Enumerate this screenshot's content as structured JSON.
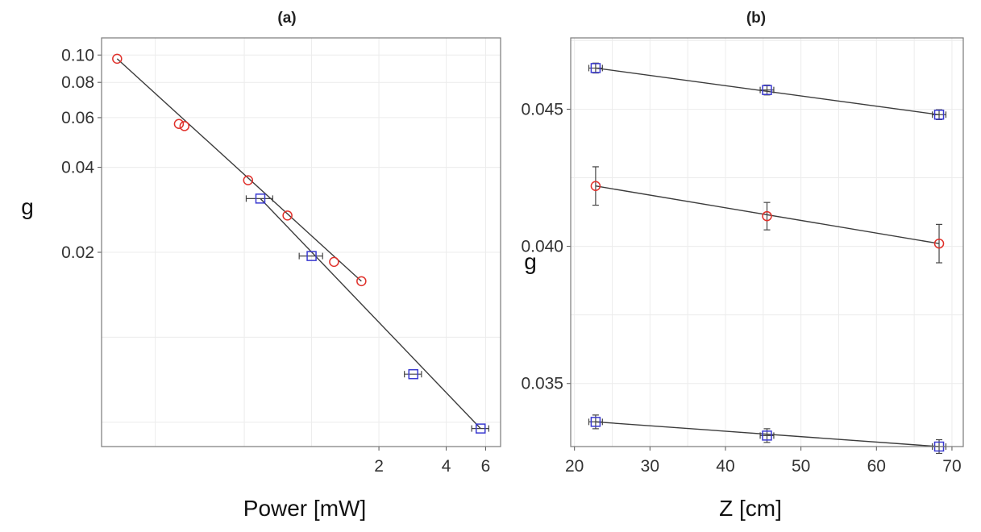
{
  "chart_data": [
    {
      "type": "scatter",
      "panel_label": "(a)",
      "xlabel": "Power [mW]",
      "ylabel": "g",
      "x_scale": "log",
      "y_scale": "log",
      "xlim": [
        0.115,
        7.0
      ],
      "ylim": [
        0.0041,
        0.115
      ],
      "x_ticks": [
        {
          "value": 2,
          "label": "2"
        },
        {
          "value": 4,
          "label": "4"
        },
        {
          "value": 6,
          "label": "6"
        }
      ],
      "y_ticks": [
        {
          "value": 0.02,
          "label": "0.02"
        },
        {
          "value": 0.04,
          "label": "0.04"
        },
        {
          "value": 0.06,
          "label": "0.06"
        },
        {
          "value": 0.08,
          "label": "0.08"
        },
        {
          "value": 0.1,
          "label": "0.10"
        }
      ],
      "grid": true,
      "series": [
        {
          "marker": "circle",
          "color": "#e0302a",
          "points": [
            {
              "x": 0.135,
              "y": 0.097
            },
            {
              "x": 0.255,
              "y": 0.057
            },
            {
              "x": 0.27,
              "y": 0.056
            },
            {
              "x": 0.52,
              "y": 0.036
            },
            {
              "x": 0.78,
              "y": 0.027
            },
            {
              "x": 1.26,
              "y": 0.0185
            },
            {
              "x": 1.67,
              "y": 0.0158
            }
          ]
        },
        {
          "marker": "square",
          "color": "#3a3ad0",
          "points": [
            {
              "x": 0.59,
              "y": 0.031,
              "xerr": 0.08
            },
            {
              "x": 1.0,
              "y": 0.0194,
              "xerr": 0.12
            },
            {
              "x": 2.85,
              "y": 0.0074,
              "xerr": 0.25
            },
            {
              "x": 5.7,
              "y": 0.00475,
              "xerr": 0.5
            }
          ]
        }
      ],
      "fit_lines": [
        {
          "x": [
            0.135,
            1.67
          ],
          "y": [
            0.097,
            0.0158
          ]
        },
        {
          "x": [
            0.59,
            5.7
          ],
          "y": [
            0.031,
            0.00475
          ]
        }
      ]
    },
    {
      "type": "scatter",
      "panel_label": "(b)",
      "xlabel": "Z [cm]",
      "ylabel": "g",
      "xlim": [
        19.5,
        71.5
      ],
      "ylim": [
        0.0327,
        0.0476
      ],
      "x_ticks": [
        {
          "value": 20,
          "label": "20"
        },
        {
          "value": 30,
          "label": "30"
        },
        {
          "value": 40,
          "label": "40"
        },
        {
          "value": 50,
          "label": "50"
        },
        {
          "value": 60,
          "label": "60"
        },
        {
          "value": 70,
          "label": "70"
        }
      ],
      "y_ticks": [
        {
          "value": 0.035,
          "label": "0.035"
        },
        {
          "value": 0.04,
          "label": "0.040"
        },
        {
          "value": 0.045,
          "label": "0.045"
        }
      ],
      "grid": true,
      "series": [
        {
          "marker": "square",
          "color": "#3a3ad0",
          "points": [
            {
              "x": 22.8,
              "y": 0.0465,
              "yerr": 0.00018,
              "xerr": 0.9
            },
            {
              "x": 45.5,
              "y": 0.0457,
              "yerr": 0.00018,
              "xerr": 0.9
            },
            {
              "x": 68.3,
              "y": 0.0448,
              "yerr": 0.00018,
              "xerr": 0.9
            }
          ]
        },
        {
          "marker": "circle",
          "color": "#e0302a",
          "points": [
            {
              "x": 22.8,
              "y": 0.0422,
              "yerr": 0.0007
            },
            {
              "x": 45.5,
              "y": 0.0411,
              "yerr": 0.0005
            },
            {
              "x": 68.3,
              "y": 0.0401,
              "yerr": 0.0007
            }
          ]
        },
        {
          "marker": "square",
          "color": "#3a3ad0",
          "points": [
            {
              "x": 22.8,
              "y": 0.0336,
              "yerr": 0.00025,
              "xerr": 0.9
            },
            {
              "x": 45.5,
              "y": 0.0331,
              "yerr": 0.00025,
              "xerr": 0.9
            },
            {
              "x": 68.3,
              "y": 0.0327,
              "yerr": 0.00025,
              "xerr": 0.9
            }
          ]
        }
      ],
      "fit_lines": [
        {
          "x": [
            22.8,
            68.3
          ],
          "y": [
            0.0465,
            0.0448
          ]
        },
        {
          "x": [
            22.8,
            68.3
          ],
          "y": [
            0.0422,
            0.0401
          ]
        },
        {
          "x": [
            22.8,
            68.3
          ],
          "y": [
            0.0336,
            0.0327
          ]
        }
      ]
    }
  ]
}
